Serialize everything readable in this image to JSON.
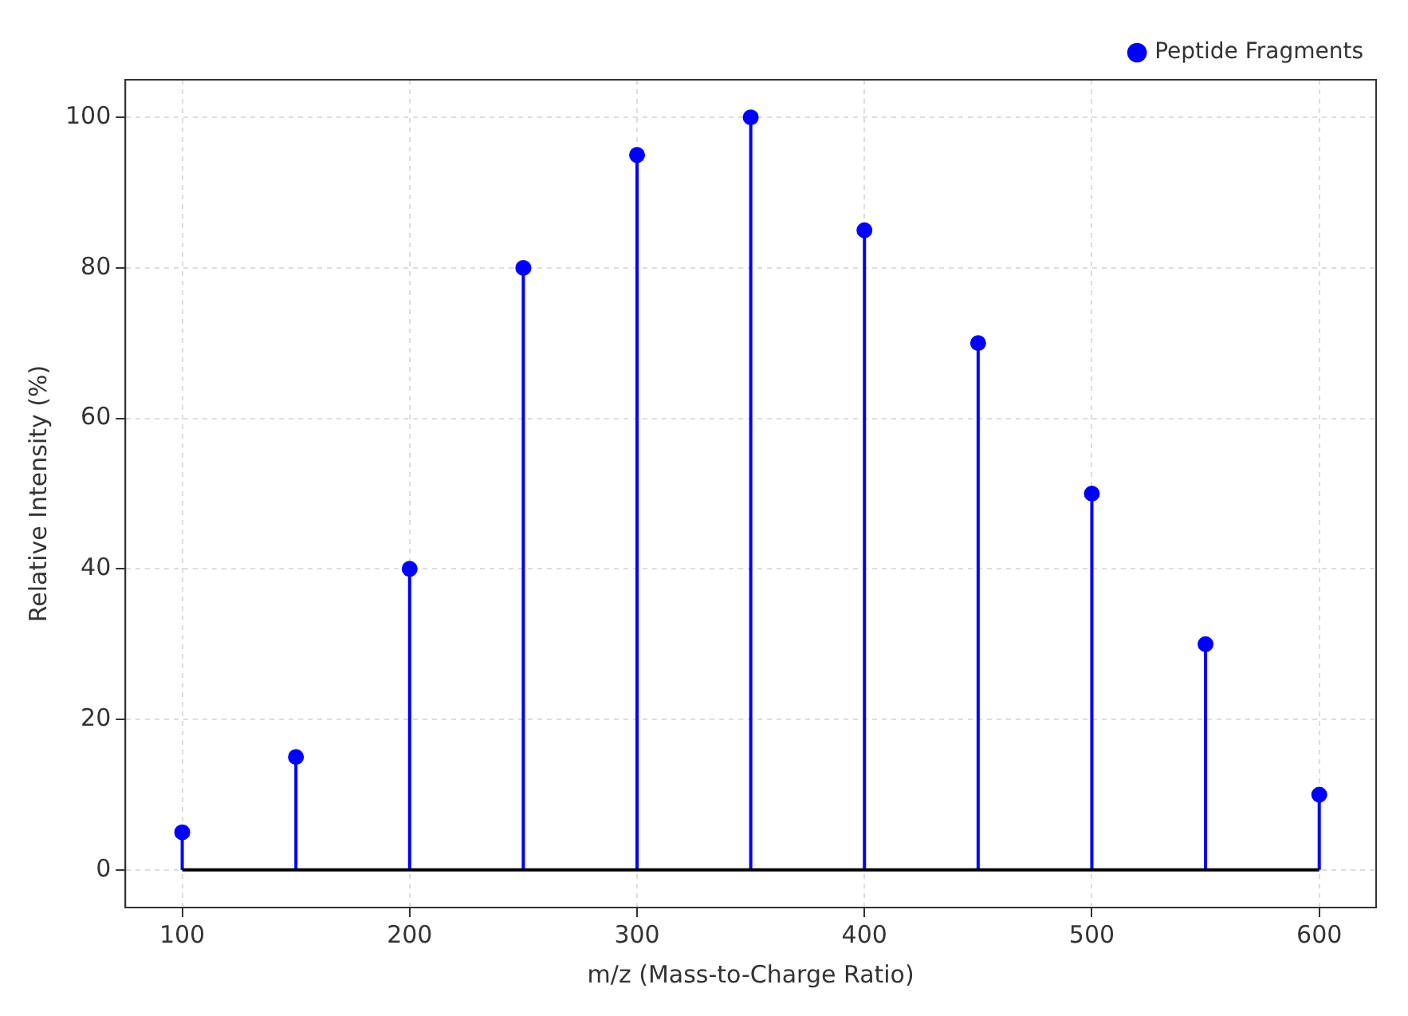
{
  "chart_data": {
    "type": "lollipop",
    "xlabel": "m/z (Mass-to-Charge Ratio)",
    "ylabel": "Relative Intensity (%)",
    "x": [
      100,
      150,
      200,
      250,
      300,
      350,
      400,
      450,
      500,
      550,
      600
    ],
    "series": [
      {
        "name": "Peptide Fragments",
        "color": "#0000ff",
        "values": [
          5,
          15,
          40,
          80,
          95,
          100,
          85,
          70,
          50,
          30,
          10
        ]
      }
    ],
    "xlim": [
      75,
      625
    ],
    "ylim": [
      -5,
      105
    ],
    "xticks": [
      100,
      200,
      300,
      400,
      500,
      600
    ],
    "yticks": [
      0,
      20,
      40,
      60,
      80,
      100
    ],
    "grid": true,
    "legend": "top right",
    "marker": "circle"
  }
}
